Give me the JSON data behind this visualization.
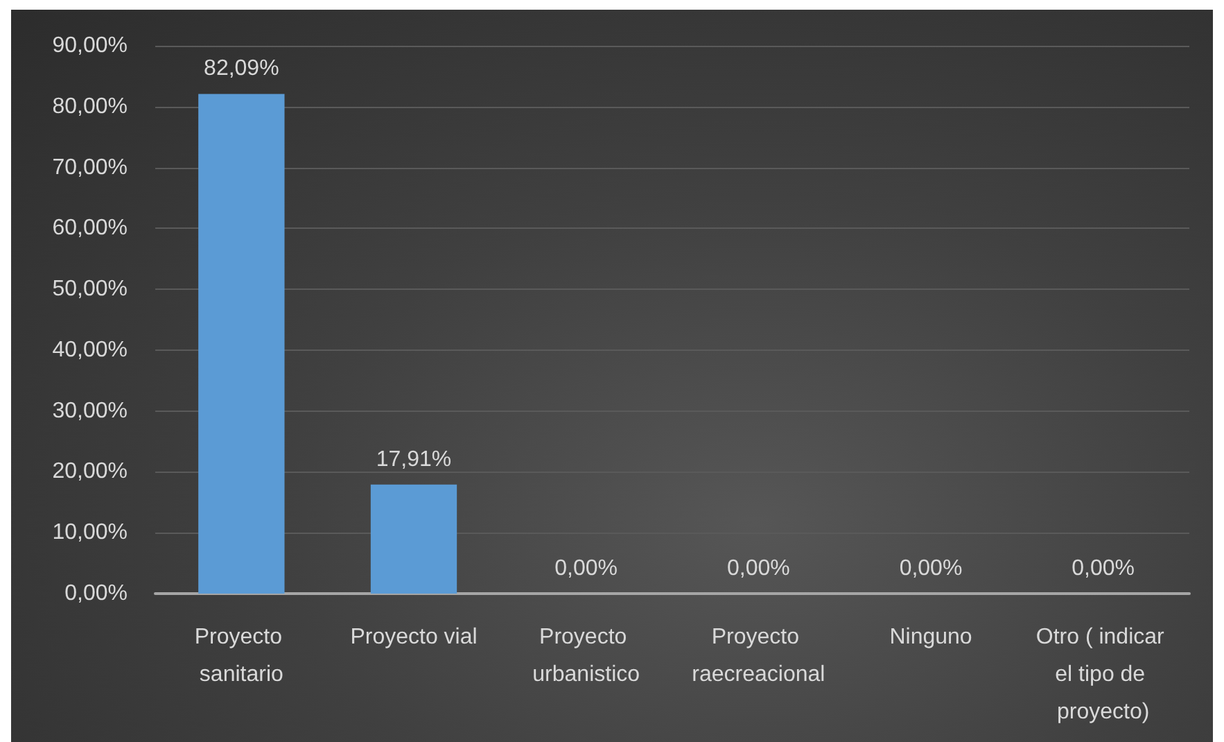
{
  "chart_data": {
    "type": "bar",
    "categories": [
      "Proyecto sanitario",
      "Proyecto vial",
      "Proyecto urbanistico",
      "Proyecto raecreacional",
      "Ninguno",
      "Otro ( indicar el tipo de proyecto)"
    ],
    "values": [
      82.09,
      17.91,
      0,
      0,
      0,
      0
    ],
    "color": "#5b9bd5",
    "value_labels": [
      "82,09%",
      "17,91%",
      "0,00%",
      "0,00%",
      "0,00%",
      "0,00%"
    ],
    "ylim": [
      0,
      90
    ],
    "yticks": [
      {
        "value": 0,
        "label": "0,00%"
      },
      {
        "value": 10,
        "label": "10,00%"
      },
      {
        "value": 20,
        "label": "20,00%"
      },
      {
        "value": 30,
        "label": "30,00%"
      },
      {
        "value": 40,
        "label": "40,00%"
      },
      {
        "value": 50,
        "label": "50,00%"
      },
      {
        "value": 60,
        "label": "60,00%"
      },
      {
        "value": 70,
        "label": "70,00%"
      },
      {
        "value": 80,
        "label": "80,00%"
      },
      {
        "value": 90,
        "label": "90,00%"
      }
    ],
    "grid": "y"
  }
}
